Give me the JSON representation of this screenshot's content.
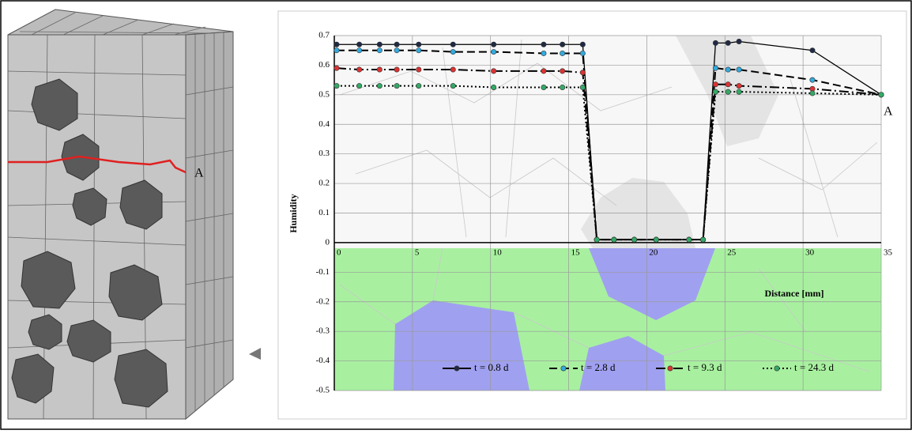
{
  "chart_data": {
    "type": "line",
    "x_label": "Distance [mm]",
    "y_label": "Humidity",
    "annotations": [
      "A"
    ],
    "x": [
      0.15,
      1.6,
      2.9,
      4.0,
      5.4,
      7.6,
      10.2,
      13.4,
      14.6,
      15.9,
      16.8,
      17.9,
      19.2,
      20.6,
      22.7,
      23.6,
      24.4,
      25.2,
      25.9,
      30.6,
      35
    ],
    "series": [
      {
        "name": "t = 0.8 d",
        "color": "#1f2a44",
        "line_color": "#000000",
        "dash": "solid",
        "values": [
          0.67,
          0.67,
          0.67,
          0.67,
          0.67,
          0.67,
          0.67,
          0.67,
          0.67,
          0.67,
          0.01,
          0.01,
          0.01,
          0.01,
          0.01,
          0.01,
          0.675,
          0.675,
          0.68,
          0.65,
          0.5
        ]
      },
      {
        "name": "t = 2.8 d",
        "color": "#33aadd",
        "line_color": "#000000",
        "dash": "dashed",
        "values": [
          0.65,
          0.65,
          0.65,
          0.65,
          0.65,
          0.645,
          0.645,
          0.64,
          0.64,
          0.64,
          0.01,
          0.01,
          0.01,
          0.01,
          0.01,
          0.01,
          0.59,
          0.585,
          0.585,
          0.55,
          0.5
        ]
      },
      {
        "name": "t = 9.3 d",
        "color": "#dd3333",
        "line_color": "#000000",
        "dash": "dash-dot",
        "values": [
          0.59,
          0.585,
          0.585,
          0.585,
          0.585,
          0.585,
          0.58,
          0.58,
          0.58,
          0.575,
          0.01,
          0.01,
          0.01,
          0.01,
          0.01,
          0.01,
          0.535,
          0.535,
          0.53,
          0.52,
          0.5
        ]
      },
      {
        "name": "t = 24.3 d",
        "color": "#33aa66",
        "line_color": "#000000",
        "dash": "dotted",
        "values": [
          0.53,
          0.53,
          0.53,
          0.53,
          0.53,
          0.53,
          0.525,
          0.525,
          0.525,
          0.525,
          0.01,
          0.01,
          0.01,
          0.01,
          0.01,
          0.01,
          0.51,
          0.51,
          0.51,
          0.505,
          0.5
        ]
      }
    ],
    "xlim": [
      0,
      35
    ],
    "xticks": [
      0,
      5,
      10,
      15,
      20,
      25,
      30,
      35
    ],
    "ylim": [
      -0.5,
      0.7
    ],
    "yticks": [
      -0.5,
      -0.4,
      -0.3,
      -0.2,
      -0.1,
      0,
      0.1,
      0.2,
      0.3,
      0.4,
      0.5,
      0.6,
      0.7
    ],
    "grid": true,
    "legend": "bottom"
  },
  "specimen": {
    "label": "A"
  }
}
